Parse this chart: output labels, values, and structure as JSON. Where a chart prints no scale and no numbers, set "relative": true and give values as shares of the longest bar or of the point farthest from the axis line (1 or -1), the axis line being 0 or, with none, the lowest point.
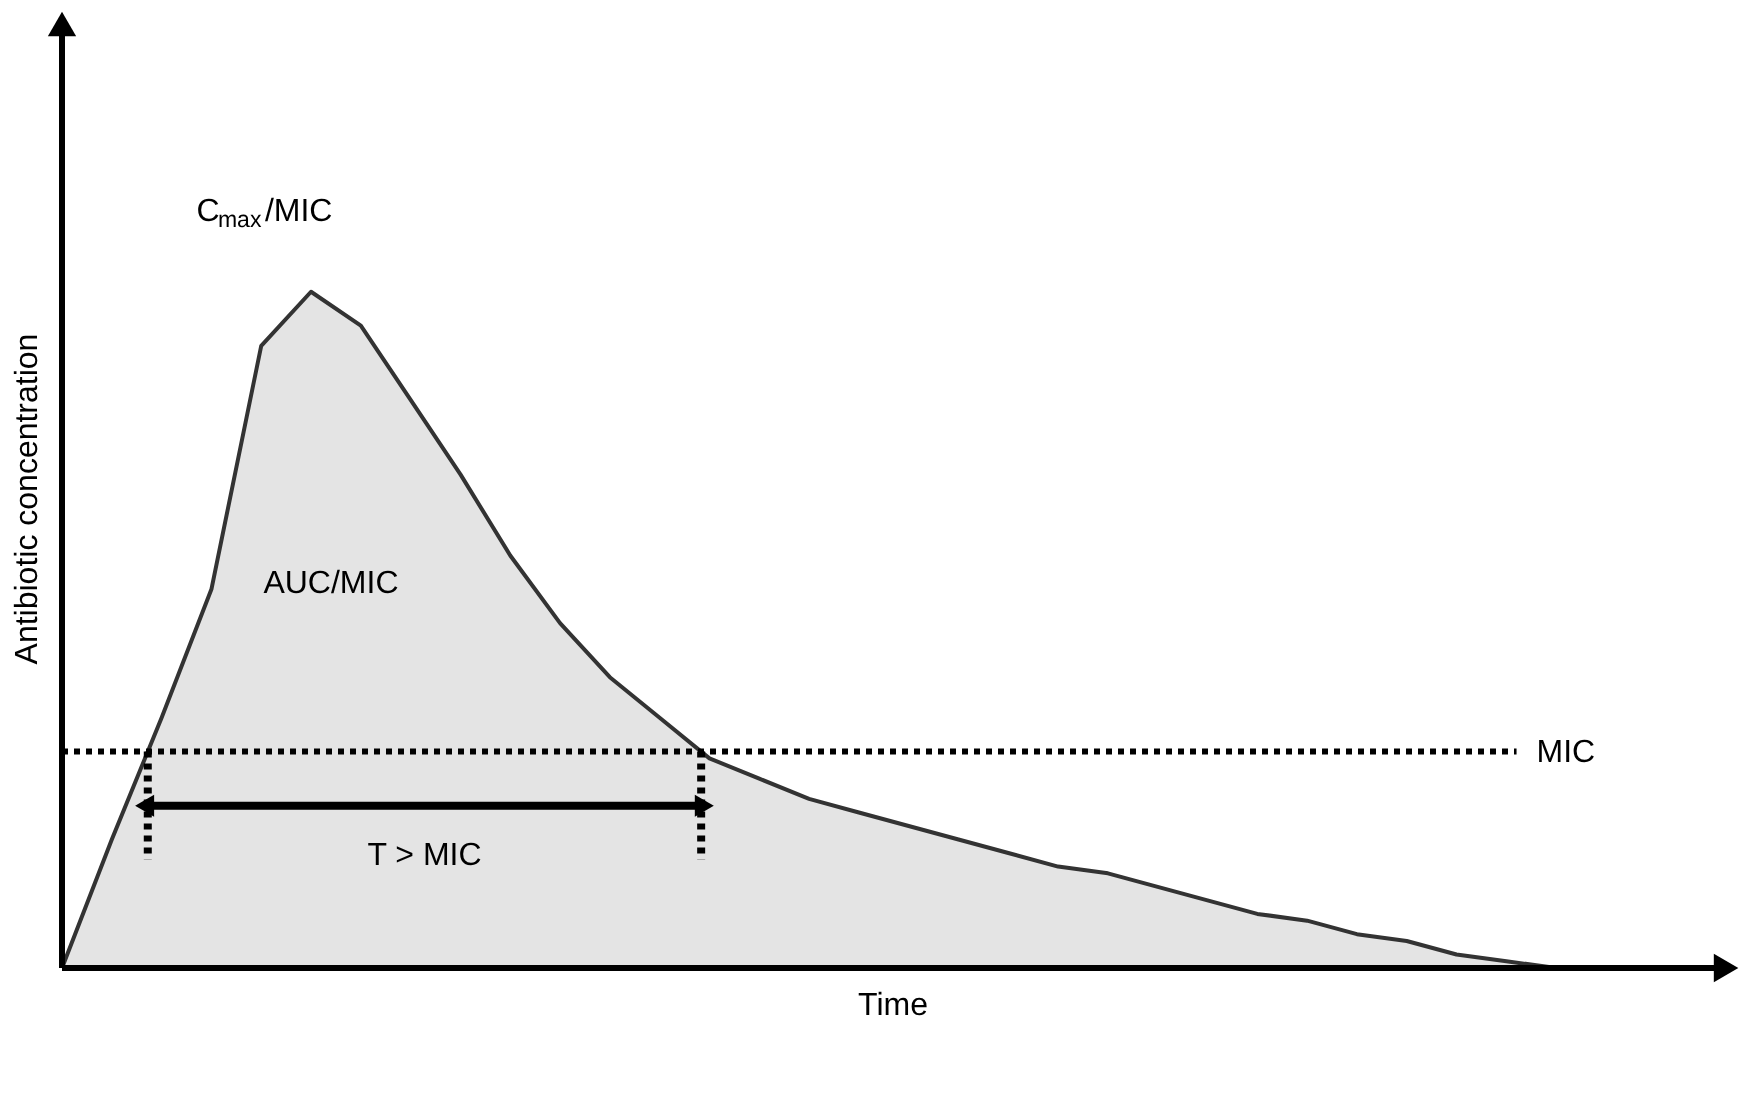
{
  "chart_data": {
    "type": "area",
    "relative": true,
    "xlabel": "Time",
    "ylabel": "Antibiotic concentration",
    "categories": [
      null,
      null,
      null,
      null,
      null,
      null,
      null,
      null,
      null,
      null,
      null,
      null,
      null,
      null,
      null,
      null,
      null,
      null,
      null,
      null,
      null,
      null,
      null,
      null,
      null,
      null,
      null,
      null,
      null,
      null,
      null,
      null,
      null,
      null
    ],
    "series": [
      {
        "color": "#d9d9d9",
        "values": [
          0,
          0.19,
          0.37,
          0.56,
          0.92,
          1.0,
          0.95,
          0.84,
          0.73,
          0.61,
          0.51,
          0.43,
          0.37,
          0.31,
          0.28,
          0.25,
          0.23,
          0.21,
          0.19,
          0.17,
          0.15,
          0.14,
          0.12,
          0.1,
          0.08,
          0.07,
          0.05,
          0.04,
          0.02,
          0.01,
          0,
          null,
          null,
          null
        ]
      }
    ],
    "ref_lines": [
      {
        "axis": "y",
        "value": 0.32,
        "label": "MIC",
        "line_style": "dotted",
        "color": "#000000"
      }
    ],
    "annotations": [
      "C$_{max}$/MIC",
      "AUC/MIC",
      "T > MIC"
    ],
    "marker": "none"
  }
}
